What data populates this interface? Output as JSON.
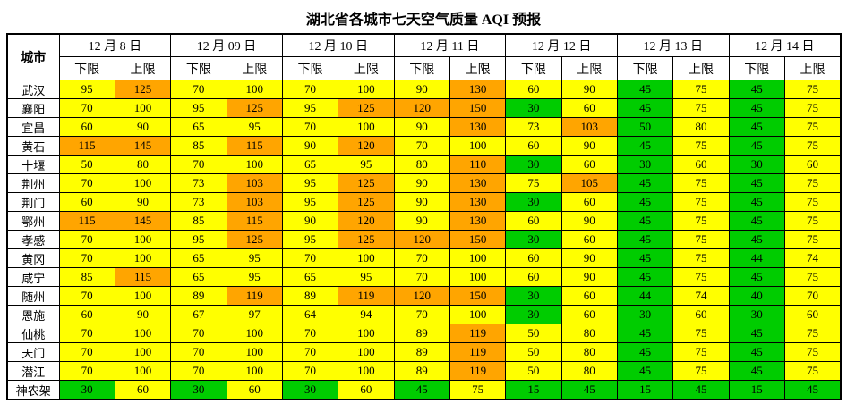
{
  "title": "湖北省各城市七天空气质量 AQI 预报",
  "colors": {
    "Y": "#FFFF00",
    "O": "#FFA500",
    "G": "#00CC00"
  },
  "chart_data": {
    "type": "table",
    "title": "湖北省各城市七天空气质量 AQI 预报",
    "city_header": "城市",
    "sub_lower": "下限",
    "sub_upper": "上限",
    "dates": [
      "12 月 8 日",
      "12 月 09 日",
      "12 月 10 日",
      "12 月 11 日",
      "12 月 12 日",
      "12 月 13 日",
      "12 月 14 日"
    ],
    "color_legend": {
      "Y": "yellow",
      "O": "orange",
      "G": "green"
    },
    "rows": [
      {
        "city": "武汉",
        "values": [
          95,
          125,
          70,
          100,
          70,
          100,
          90,
          130,
          60,
          90,
          45,
          75,
          45,
          75
        ],
        "colors": [
          "Y",
          "O",
          "Y",
          "Y",
          "Y",
          "Y",
          "Y",
          "O",
          "Y",
          "Y",
          "G",
          "Y",
          "G",
          "Y"
        ]
      },
      {
        "city": "襄阳",
        "values": [
          70,
          100,
          95,
          125,
          95,
          125,
          120,
          150,
          30,
          60,
          45,
          75,
          45,
          75
        ],
        "colors": [
          "Y",
          "Y",
          "Y",
          "O",
          "Y",
          "O",
          "O",
          "O",
          "G",
          "Y",
          "G",
          "Y",
          "G",
          "Y"
        ]
      },
      {
        "city": "宜昌",
        "values": [
          60,
          90,
          65,
          95,
          70,
          100,
          90,
          130,
          73,
          103,
          50,
          80,
          45,
          75
        ],
        "colors": [
          "Y",
          "Y",
          "Y",
          "Y",
          "Y",
          "Y",
          "Y",
          "O",
          "Y",
          "O",
          "G",
          "Y",
          "G",
          "Y"
        ]
      },
      {
        "city": "黄石",
        "values": [
          115,
          145,
          85,
          115,
          90,
          120,
          70,
          100,
          60,
          90,
          45,
          75,
          45,
          75
        ],
        "colors": [
          "O",
          "O",
          "Y",
          "O",
          "Y",
          "O",
          "Y",
          "Y",
          "Y",
          "Y",
          "G",
          "Y",
          "G",
          "Y"
        ]
      },
      {
        "city": "十堰",
        "values": [
          50,
          80,
          70,
          100,
          65,
          95,
          80,
          110,
          30,
          60,
          30,
          60,
          30,
          60
        ],
        "colors": [
          "Y",
          "Y",
          "Y",
          "Y",
          "Y",
          "Y",
          "Y",
          "O",
          "G",
          "Y",
          "G",
          "Y",
          "G",
          "Y"
        ]
      },
      {
        "city": "荆州",
        "values": [
          70,
          100,
          73,
          103,
          95,
          125,
          90,
          130,
          75,
          105,
          45,
          75,
          45,
          75
        ],
        "colors": [
          "Y",
          "Y",
          "Y",
          "O",
          "Y",
          "O",
          "Y",
          "O",
          "Y",
          "O",
          "G",
          "Y",
          "G",
          "Y"
        ]
      },
      {
        "city": "荆门",
        "values": [
          60,
          90,
          73,
          103,
          95,
          125,
          90,
          130,
          30,
          60,
          45,
          75,
          45,
          75
        ],
        "colors": [
          "Y",
          "Y",
          "Y",
          "O",
          "Y",
          "O",
          "Y",
          "O",
          "G",
          "Y",
          "G",
          "Y",
          "G",
          "Y"
        ]
      },
      {
        "city": "鄂州",
        "values": [
          115,
          145,
          85,
          115,
          90,
          120,
          90,
          130,
          60,
          90,
          45,
          75,
          45,
          75
        ],
        "colors": [
          "O",
          "O",
          "Y",
          "O",
          "Y",
          "O",
          "Y",
          "O",
          "Y",
          "Y",
          "G",
          "Y",
          "G",
          "Y"
        ]
      },
      {
        "city": "孝感",
        "values": [
          70,
          100,
          95,
          125,
          95,
          125,
          120,
          150,
          30,
          60,
          45,
          75,
          45,
          75
        ],
        "colors": [
          "Y",
          "Y",
          "Y",
          "O",
          "Y",
          "O",
          "O",
          "O",
          "G",
          "Y",
          "G",
          "Y",
          "G",
          "Y"
        ]
      },
      {
        "city": "黄冈",
        "values": [
          70,
          100,
          65,
          95,
          70,
          100,
          70,
          100,
          60,
          90,
          45,
          75,
          44,
          74
        ],
        "colors": [
          "Y",
          "Y",
          "Y",
          "Y",
          "Y",
          "Y",
          "Y",
          "Y",
          "Y",
          "Y",
          "G",
          "Y",
          "G",
          "Y"
        ]
      },
      {
        "city": "咸宁",
        "values": [
          85,
          115,
          65,
          95,
          65,
          95,
          70,
          100,
          60,
          90,
          45,
          75,
          45,
          75
        ],
        "colors": [
          "Y",
          "O",
          "Y",
          "Y",
          "Y",
          "Y",
          "Y",
          "Y",
          "Y",
          "Y",
          "G",
          "Y",
          "G",
          "Y"
        ]
      },
      {
        "city": "随州",
        "values": [
          70,
          100,
          89,
          119,
          89,
          119,
          120,
          150,
          30,
          60,
          44,
          74,
          40,
          70
        ],
        "colors": [
          "Y",
          "Y",
          "Y",
          "O",
          "Y",
          "O",
          "O",
          "O",
          "G",
          "Y",
          "G",
          "Y",
          "G",
          "Y"
        ]
      },
      {
        "city": "恩施",
        "values": [
          60,
          90,
          67,
          97,
          64,
          94,
          70,
          100,
          30,
          60,
          30,
          60,
          30,
          60
        ],
        "colors": [
          "Y",
          "Y",
          "Y",
          "Y",
          "Y",
          "Y",
          "Y",
          "Y",
          "G",
          "Y",
          "G",
          "Y",
          "G",
          "Y"
        ]
      },
      {
        "city": "仙桃",
        "values": [
          70,
          100,
          70,
          100,
          70,
          100,
          89,
          119,
          50,
          80,
          45,
          75,
          45,
          75
        ],
        "colors": [
          "Y",
          "Y",
          "Y",
          "Y",
          "Y",
          "Y",
          "Y",
          "O",
          "Y",
          "Y",
          "G",
          "Y",
          "G",
          "Y"
        ]
      },
      {
        "city": "天门",
        "values": [
          70,
          100,
          70,
          100,
          70,
          100,
          89,
          119,
          50,
          80,
          45,
          75,
          45,
          75
        ],
        "colors": [
          "Y",
          "Y",
          "Y",
          "Y",
          "Y",
          "Y",
          "Y",
          "O",
          "Y",
          "Y",
          "G",
          "Y",
          "G",
          "Y"
        ]
      },
      {
        "city": "潜江",
        "values": [
          70,
          100,
          70,
          100,
          70,
          100,
          89,
          119,
          50,
          80,
          45,
          75,
          45,
          75
        ],
        "colors": [
          "Y",
          "Y",
          "Y",
          "Y",
          "Y",
          "Y",
          "Y",
          "O",
          "Y",
          "Y",
          "G",
          "Y",
          "G",
          "Y"
        ]
      },
      {
        "city": "神农架",
        "values": [
          30,
          60,
          30,
          60,
          30,
          60,
          45,
          75,
          15,
          45,
          15,
          45,
          15,
          45
        ],
        "colors": [
          "G",
          "Y",
          "G",
          "Y",
          "G",
          "Y",
          "G",
          "Y",
          "G",
          "G",
          "G",
          "G",
          "G",
          "G"
        ]
      }
    ]
  }
}
